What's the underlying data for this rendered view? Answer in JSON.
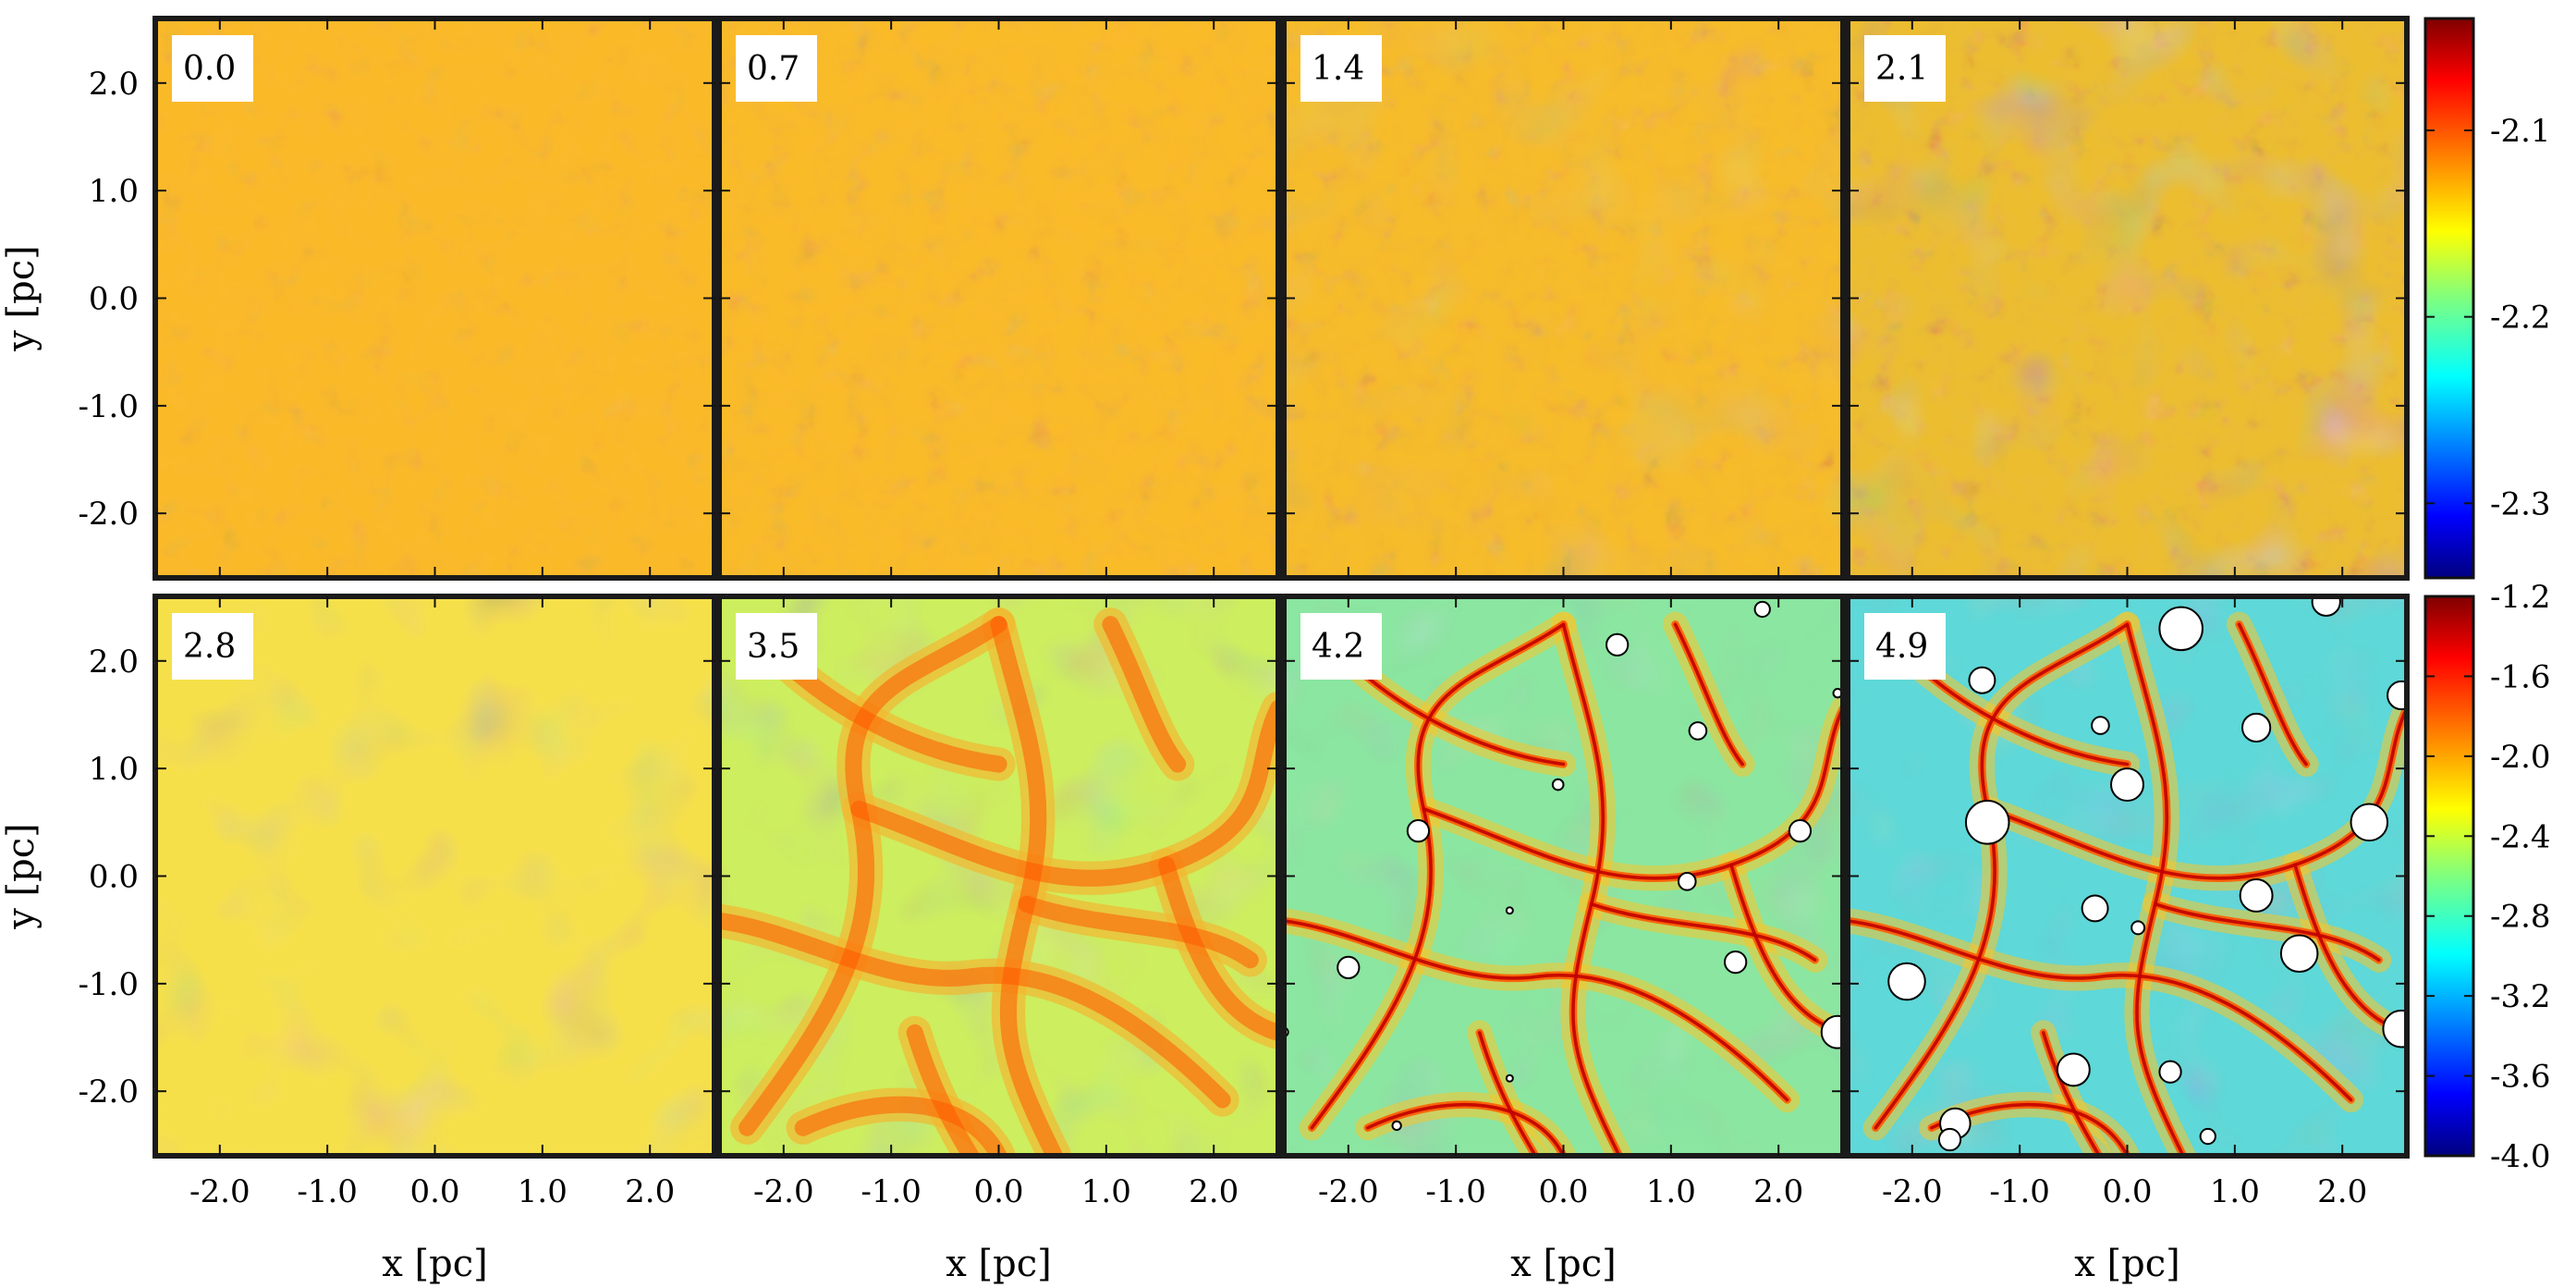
{
  "chart_data": {
    "type": "heatmap",
    "title": "",
    "colormap": "jet",
    "grid": false,
    "panel_times": [
      "0.0",
      "0.7",
      "1.4",
      "2.1",
      "2.8",
      "3.5",
      "4.2",
      "4.9"
    ],
    "xlabel": "x [pc]",
    "ylabel": "y [pc]",
    "xlim": [
      -2.6,
      2.6
    ],
    "ylim": [
      -2.6,
      2.6
    ],
    "x_ticks": [
      -2.0,
      -1.0,
      0.0,
      1.0,
      2.0
    ],
    "x_tick_labels": [
      "-2.0",
      "-1.0",
      "0.0",
      "1.0",
      "2.0"
    ],
    "y_ticks": [
      2.0,
      1.0,
      0.0,
      -1.0,
      -2.0
    ],
    "y_tick_labels": [
      "2.0",
      "1.0",
      "0.0",
      "-1.0",
      "-2.0"
    ],
    "colorbars": [
      {
        "row": "top",
        "range": [
          -2.34,
          -2.04
        ],
        "ticks": [
          -2.1,
          -2.2,
          -2.3
        ],
        "tick_labels": [
          "-2.1",
          "-2.2",
          "-2.3"
        ]
      },
      {
        "row": "bottom",
        "range": [
          -4.0,
          -1.2
        ],
        "ticks": [
          -1.2,
          -1.6,
          -2.0,
          -2.4,
          -2.8,
          -3.2,
          -3.6,
          -4.0
        ],
        "tick_labels": [
          "-1.2",
          "-1.6",
          "-2.0",
          "-2.4",
          "-2.8",
          "-3.2",
          "-3.6",
          "-4.0"
        ]
      }
    ],
    "sink_particles": {
      "4.2": [
        {
          "x": 0.5,
          "y": 2.15,
          "r": 0.1
        },
        {
          "x": 1.85,
          "y": 2.48,
          "r": 0.07
        },
        {
          "x": 1.25,
          "y": 1.35,
          "r": 0.08
        },
        {
          "x": 2.55,
          "y": 1.7,
          "r": 0.04
        },
        {
          "x": -0.05,
          "y": 0.85,
          "r": 0.05
        },
        {
          "x": -1.35,
          "y": 0.42,
          "r": 0.1
        },
        {
          "x": 2.2,
          "y": 0.42,
          "r": 0.1
        },
        {
          "x": 1.15,
          "y": -0.05,
          "r": 0.08
        },
        {
          "x": -0.5,
          "y": -0.32,
          "r": 0.03
        },
        {
          "x": -2.0,
          "y": -0.85,
          "r": 0.1
        },
        {
          "x": 1.6,
          "y": -0.8,
          "r": 0.1
        },
        {
          "x": 2.55,
          "y": -1.45,
          "r": 0.15
        },
        {
          "x": -0.5,
          "y": -1.88,
          "r": 0.03
        },
        {
          "x": -1.55,
          "y": -2.32,
          "r": 0.04
        },
        {
          "x": -2.6,
          "y": -1.45,
          "r": 0.04
        }
      ],
      "4.9": [
        {
          "x": 0.5,
          "y": 2.3,
          "r": 0.2
        },
        {
          "x": 1.85,
          "y": 2.55,
          "r": 0.13
        },
        {
          "x": -1.35,
          "y": 1.82,
          "r": 0.12
        },
        {
          "x": -0.25,
          "y": 1.4,
          "r": 0.08
        },
        {
          "x": 1.2,
          "y": 1.38,
          "r": 0.13
        },
        {
          "x": 2.55,
          "y": 1.68,
          "r": 0.13
        },
        {
          "x": 0.0,
          "y": 0.85,
          "r": 0.15
        },
        {
          "x": -1.3,
          "y": 0.5,
          "r": 0.2
        },
        {
          "x": 2.25,
          "y": 0.5,
          "r": 0.17
        },
        {
          "x": 1.2,
          "y": -0.18,
          "r": 0.15
        },
        {
          "x": -0.3,
          "y": -0.3,
          "r": 0.12
        },
        {
          "x": 0.1,
          "y": -0.48,
          "r": 0.06
        },
        {
          "x": 1.6,
          "y": -0.72,
          "r": 0.17
        },
        {
          "x": -2.05,
          "y": -0.98,
          "r": 0.17
        },
        {
          "x": 2.55,
          "y": -1.42,
          "r": 0.17
        },
        {
          "x": -0.5,
          "y": -1.8,
          "r": 0.15
        },
        {
          "x": 0.4,
          "y": -1.82,
          "r": 0.1
        },
        {
          "x": -1.6,
          "y": -2.3,
          "r": 0.14
        },
        {
          "x": -1.65,
          "y": -2.45,
          "r": 0.1
        },
        {
          "x": 0.75,
          "y": -2.42,
          "r": 0.07
        }
      ]
    }
  }
}
